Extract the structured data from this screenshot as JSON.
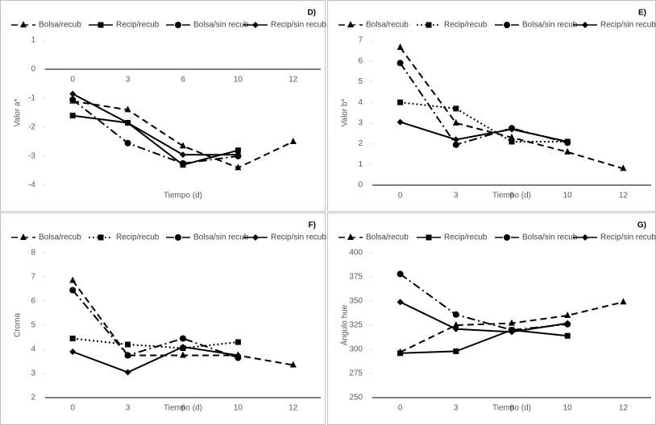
{
  "chart_data": [
    {
      "type": "line",
      "title": "D)",
      "x_label": "Tiempo (d)",
      "y_label": "Valor a*",
      "legend": "top",
      "categories": [
        "0",
        "3",
        "6",
        "10",
        "12"
      ],
      "ylim": [
        -4,
        1
      ],
      "yticks": [
        1,
        0,
        -1,
        -2,
        -3,
        -4
      ],
      "series": [
        {
          "name": "Bolsa/recub",
          "color": "#000000",
          "dash": "dashed",
          "marker": "triangle",
          "values": [
            -1.1,
            -1.4,
            -2.65,
            -3.4,
            -2.5
          ]
        },
        {
          "name": "Recip/recub",
          "color": "#000000",
          "dash": "solid",
          "marker": "square",
          "values": [
            -1.6,
            -1.85,
            -3.3,
            -2.8,
            null
          ]
        },
        {
          "name": "Bolsa/sin recub",
          "color": "#000000",
          "dash": "dashdot",
          "marker": "circle",
          "values": [
            -1.05,
            -2.55,
            -3.25,
            -3.0,
            null
          ]
        },
        {
          "name": "Recip/sin recub",
          "color": "#000000",
          "dash": "solid",
          "marker": "diamond",
          "values": [
            -0.85,
            -1.85,
            -2.95,
            -2.95,
            null
          ]
        }
      ]
    },
    {
      "type": "line",
      "title": "E)",
      "x_label": "Tiempo (d)",
      "y_label": "Valor b*",
      "legend": "top",
      "categories": [
        "0",
        "3",
        "6",
        "10",
        "12"
      ],
      "ylim": [
        0,
        7
      ],
      "yticks": [
        0,
        1,
        2,
        3,
        4,
        5,
        6,
        7
      ],
      "series": [
        {
          "name": "Bolsa/recub",
          "color": "#000000",
          "dash": "dashed",
          "marker": "triangle",
          "values": [
            6.65,
            3.0,
            2.3,
            1.6,
            0.8
          ]
        },
        {
          "name": "Recip/recub",
          "color": "#000000",
          "dash": "dotted",
          "marker": "square",
          "values": [
            4.0,
            3.7,
            2.1,
            2.1,
            null
          ]
        },
        {
          "name": "Bolsa/sin recub",
          "color": "#000000",
          "dash": "dashdot",
          "marker": "circle",
          "values": [
            5.9,
            1.95,
            2.75,
            2.05,
            null
          ]
        },
        {
          "name": "Recip/sin recub",
          "color": "#000000",
          "dash": "solid",
          "marker": "diamond",
          "values": [
            3.05,
            2.2,
            2.7,
            2.1,
            null
          ]
        }
      ]
    },
    {
      "type": "line",
      "title": "F)",
      "x_label": "Tiempo (d)",
      "y_label": "Croma",
      "legend": "top",
      "categories": [
        "0",
        "3",
        "6",
        "10",
        "12"
      ],
      "ylim": [
        2,
        8
      ],
      "yticks": [
        2,
        3,
        4,
        5,
        6,
        7,
        8
      ],
      "series": [
        {
          "name": "Bolsa/recub",
          "color": "#000000",
          "dash": "dashed",
          "marker": "triangle",
          "values": [
            6.85,
            3.75,
            3.75,
            3.75,
            3.35
          ]
        },
        {
          "name": "Recip/recub",
          "color": "#000000",
          "dash": "dotted",
          "marker": "square",
          "values": [
            4.45,
            4.2,
            4.05,
            4.3,
            null
          ]
        },
        {
          "name": "Bolsa/sin recub",
          "color": "#000000",
          "dash": "dashdot",
          "marker": "circle",
          "values": [
            6.45,
            3.75,
            4.45,
            3.65,
            null
          ]
        },
        {
          "name": "Recip/sin recub",
          "color": "#000000",
          "dash": "solid",
          "marker": "diamond",
          "values": [
            3.9,
            3.05,
            4.1,
            3.75,
            null
          ]
        }
      ]
    },
    {
      "type": "line",
      "title": "G)",
      "x_label": "Tiempo (d)",
      "y_label": "Ángulo hue",
      "legend": "top",
      "categories": [
        "0",
        "3",
        "6",
        "10",
        "12"
      ],
      "ylim": [
        250,
        400
      ],
      "yticks": [
        250,
        275,
        300,
        325,
        350,
        375,
        400
      ],
      "series": [
        {
          "name": "Bolsa/recub",
          "color": "#000000",
          "dash": "dashed",
          "marker": "triangle",
          "values": [
            297,
            325,
            327,
            335,
            349
          ]
        },
        {
          "name": "Recip/recub",
          "color": "#000000",
          "dash": "solid",
          "marker": "square",
          "values": [
            296,
            298,
            320,
            314,
            null
          ]
        },
        {
          "name": "Bolsa/sin recub",
          "color": "#000000",
          "dash": "dashdot",
          "marker": "circle",
          "values": [
            378,
            336,
            320,
            326,
            null
          ]
        },
        {
          "name": "Recip/sin recub",
          "color": "#000000",
          "dash": "solid",
          "marker": "diamond",
          "values": [
            349,
            321,
            318,
            327,
            null
          ]
        }
      ]
    }
  ]
}
